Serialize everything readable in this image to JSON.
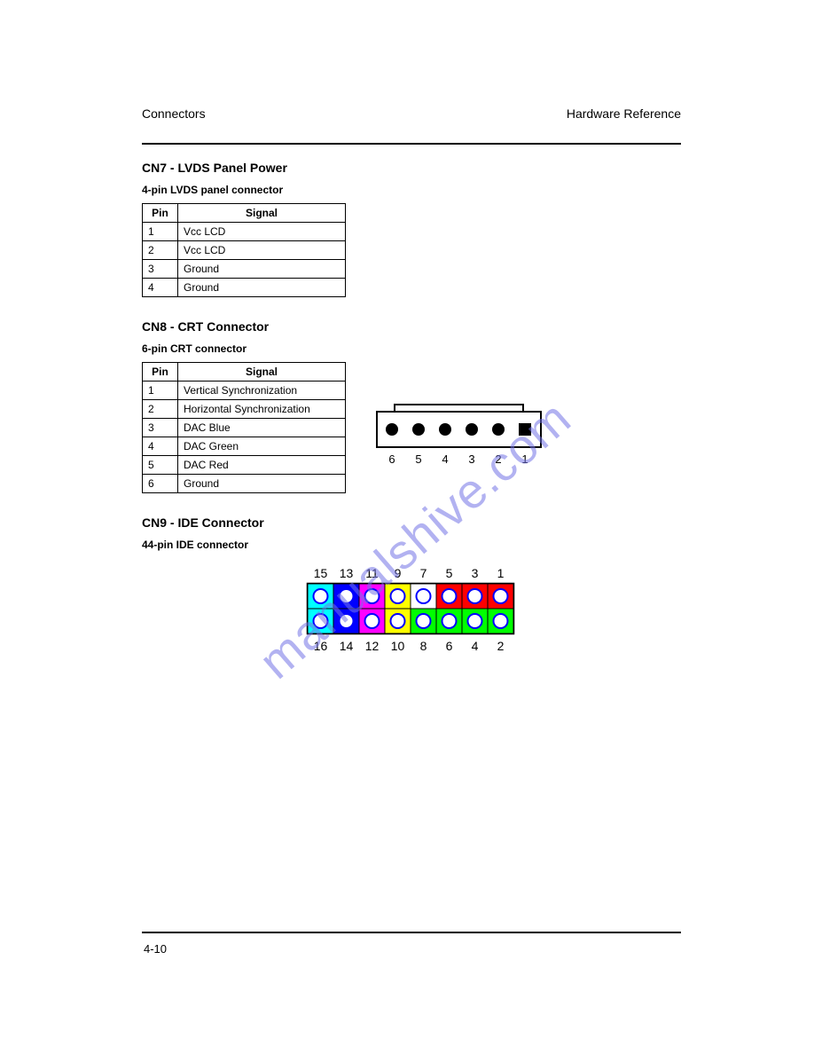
{
  "header": {
    "left": "Connectors",
    "right": "Hardware Reference"
  },
  "footer": "4-10",
  "table1": {
    "title": "CN7 - LVDS Panel Power",
    "subtitle": "4-pin LVDS panel connector",
    "columns": [
      "Pin",
      "Signal"
    ],
    "rows": [
      [
        "1",
        "Vcc LCD"
      ],
      [
        "2",
        "Vcc LCD"
      ],
      [
        "3",
        "Ground"
      ],
      [
        "4",
        "Ground"
      ]
    ]
  },
  "table2": {
    "title": "CN8 - CRT Connector",
    "subtitle": "6-pin CRT connector",
    "columns": [
      "Pin",
      "Signal"
    ],
    "rows": [
      [
        "1",
        "Vertical Synchronization"
      ],
      [
        "2",
        "Horizontal Synchronization"
      ],
      [
        "3",
        "DAC Blue"
      ],
      [
        "4",
        "DAC Green"
      ],
      [
        "5",
        "DAC Red"
      ],
      [
        "6",
        "Ground"
      ]
    ]
  },
  "section3": {
    "title": "CN9 - IDE Connector",
    "subtitle": "44-pin IDE connector"
  },
  "cn8_diagram": {
    "pin_count": 6,
    "pin_labels": [
      "6",
      "5",
      "4",
      "3",
      "2",
      "1"
    ],
    "pin_dot_color": "#000000",
    "stroke_color": "#000000",
    "fill_color": "#ffffff"
  },
  "connector_diagram": {
    "top_labels": [
      "15",
      "13",
      "11",
      "9",
      "7",
      "5",
      "3",
      "1"
    ],
    "bottom_labels": [
      "16",
      "14",
      "12",
      "10",
      "8",
      "6",
      "4",
      "2"
    ],
    "border_color": "#000000",
    "pin_circle_stroke": "#0000ff",
    "pin_circle_fill": "#ffffff",
    "cells": {
      "top": [
        {
          "fill": "#00ffff"
        },
        {
          "fill": "#0000ff"
        },
        {
          "fill": "#ff00ff"
        },
        {
          "fill": "#ffff00"
        },
        {
          "fill": "#ffffff"
        },
        {
          "fill": "#ff0000"
        },
        {
          "fill": "#ff0000"
        },
        {
          "fill": "#ff0000"
        }
      ],
      "bottom": [
        {
          "fill": "#00ffff"
        },
        {
          "fill": "#0000ff"
        },
        {
          "fill": "#ff00ff"
        },
        {
          "fill": "#ffff00"
        },
        {
          "fill": "#00ff00"
        },
        {
          "fill": "#00ff00"
        },
        {
          "fill": "#00ff00"
        },
        {
          "fill": "#00ff00"
        }
      ]
    }
  },
  "watermark": "manualshive.com"
}
